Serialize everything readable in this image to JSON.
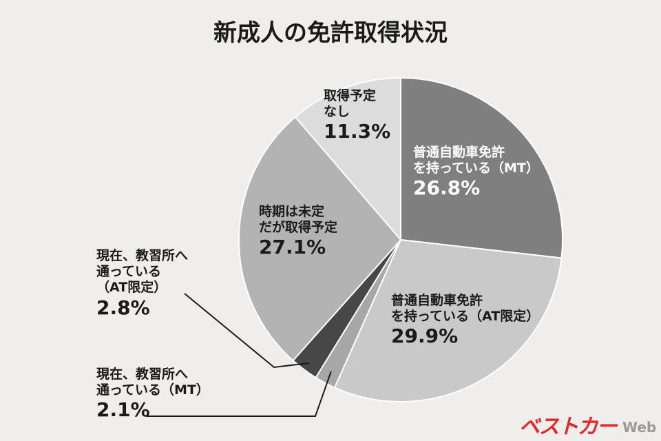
{
  "title": "新成人の免許取得状況",
  "logo": {
    "mark": "ベストカー",
    "suffix": "Web"
  },
  "chart_data": {
    "type": "pie",
    "title": "新成人の免許取得状況",
    "start_angle_deg": 0,
    "direction": "clockwise",
    "slices": [
      {
        "label_lines": [
          "普通自動車免許",
          "を持っている（MT）"
        ],
        "value_text": "26.8%",
        "value": 26.8,
        "color": "#7f7f7f",
        "text_color": "#ffffff"
      },
      {
        "label_lines": [
          "普通自動車免許",
          "を持っている（AT限定）"
        ],
        "value_text": "29.9%",
        "value": 29.9,
        "color": "#c9c9c9",
        "text_color": "#1a1a1a"
      },
      {
        "label_lines": [
          "現在、教習所へ",
          "通っている（MT）"
        ],
        "value_text": "2.1%",
        "value": 2.1,
        "color": "#a7a7a7",
        "text_color": "#1a1a1a"
      },
      {
        "label_lines": [
          "現在、教習所へ",
          "通っている",
          "（AT限定）"
        ],
        "value_text": "2.8%",
        "value": 2.8,
        "color": "#474747",
        "text_color": "#1a1a1a"
      },
      {
        "label_lines": [
          "時期は未定",
          "だが取得予定"
        ],
        "value_text": "27.1%",
        "value": 27.1,
        "color": "#b3b3b3",
        "text_color": "#1a1a1a"
      },
      {
        "label_lines": [
          "取得予定",
          "なし"
        ],
        "value_text": "11.3%",
        "value": 11.3,
        "color": "#dcdcdc",
        "text_color": "#1a1a1a"
      }
    ]
  }
}
